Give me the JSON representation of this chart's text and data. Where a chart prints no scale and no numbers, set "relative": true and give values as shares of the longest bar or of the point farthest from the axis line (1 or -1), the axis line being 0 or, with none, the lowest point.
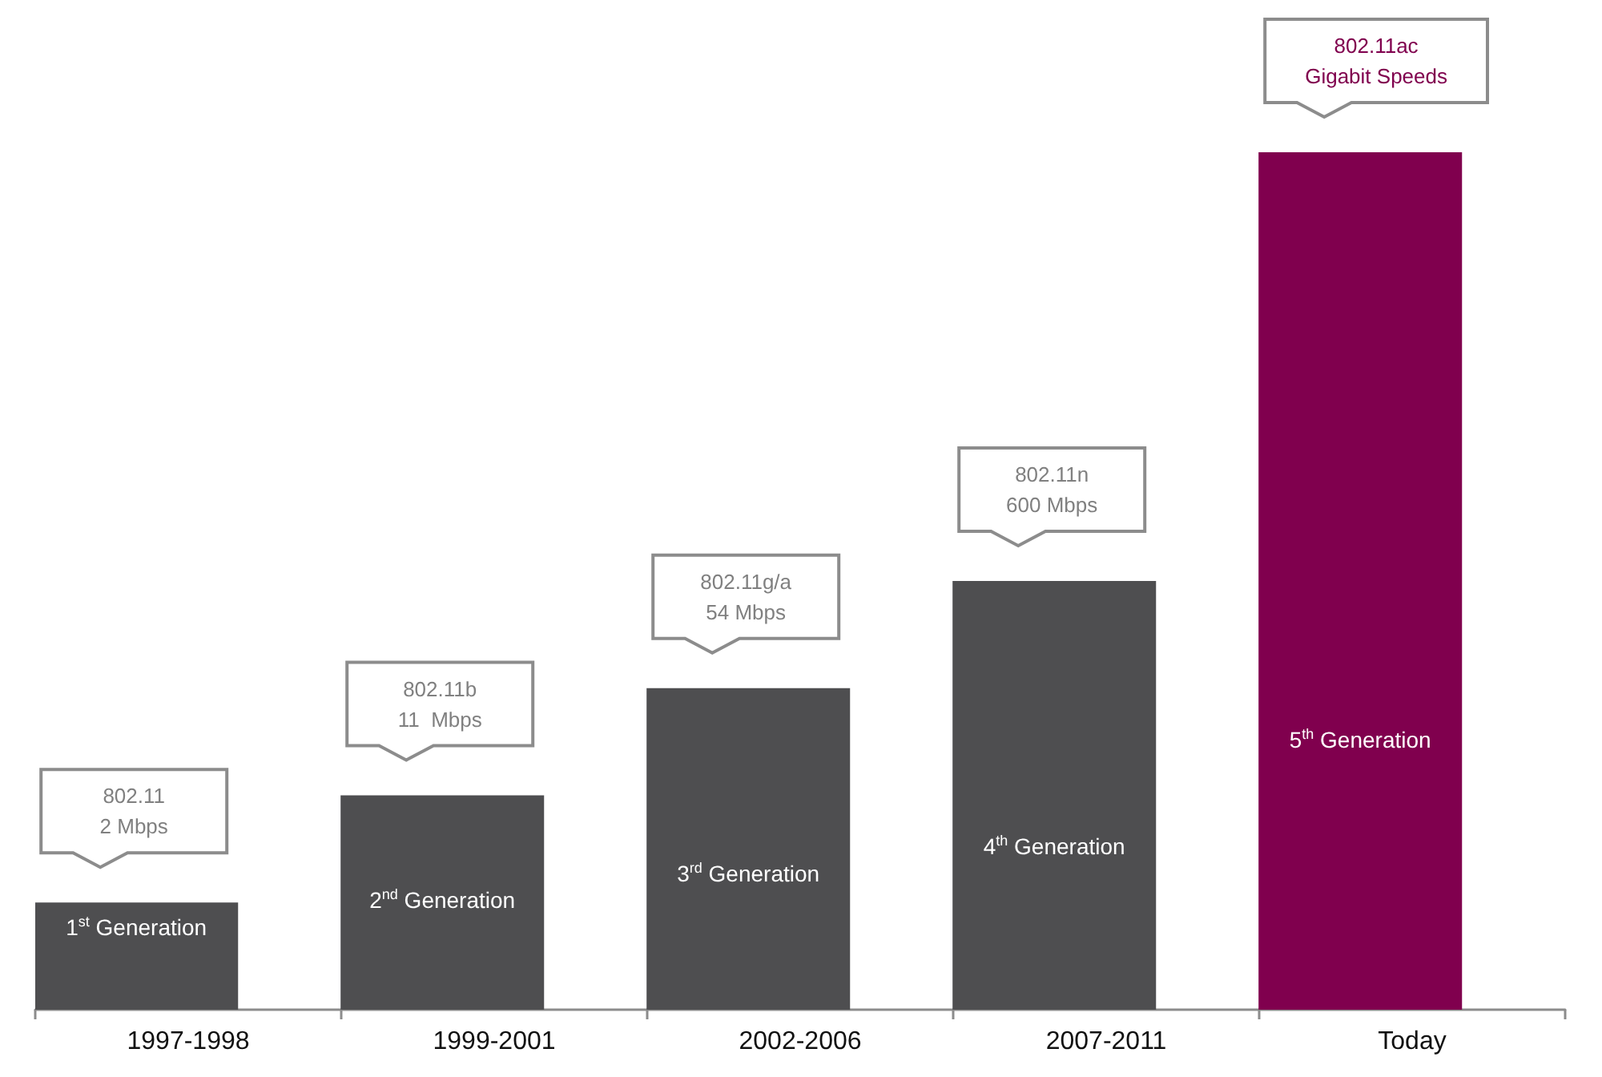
{
  "chart_data": {
    "type": "bar",
    "relative": true,
    "categories": [
      "1997-1998",
      "1999-2001",
      "2002-2006",
      "2007-2011",
      "Today"
    ],
    "values": [
      0.125,
      0.25,
      0.375,
      0.5,
      1
    ],
    "colors": [
      "#4e4e50",
      "#4e4e50",
      "#4e4e50",
      "#4e4e50",
      "#80004e"
    ],
    "annotations": [
      "802.11\n2 Mbps",
      "802.11b\n11  Mbps",
      "802.11g/a\n54 Mbps",
      "802.11n\n600 Mbps",
      "802.11ac\nGigabit Speeds",
      "1$^{st}$ Generation",
      "2$^{nd}$ Generation",
      "3$^{rd}$ Generation",
      "4$^{th}$ Generation",
      "5$^{th}$ Generation"
    ]
  }
}
